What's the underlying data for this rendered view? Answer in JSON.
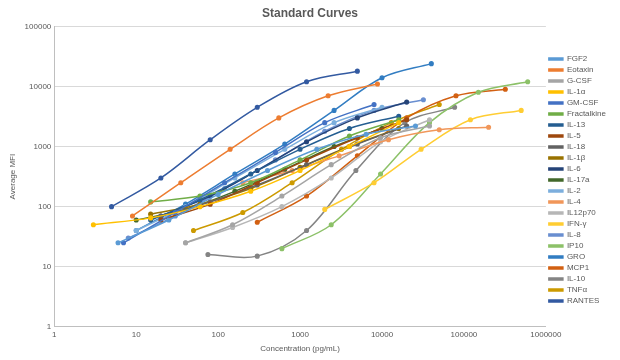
{
  "chart_data": {
    "type": "line",
    "title": "Standard Curves",
    "x_label": "Concentration (pg/mL)",
    "y_label": "Average MFI",
    "log": true,
    "grid": "y",
    "legend": "right",
    "marker": "circle",
    "xlim": [
      1,
      1000000
    ],
    "xticks": [
      1,
      10,
      100,
      1000,
      10000,
      100000,
      1000000
    ],
    "ylim": [
      1,
      100000
    ],
    "yticks": [
      1,
      10,
      100,
      1000,
      10000,
      100000
    ],
    "series": [
      {
        "name": "FGF2",
        "color": "#5B9BD5",
        "x": [
          6,
          25,
          100,
          400,
          1600,
          6400,
          25600
        ],
        "values": [
          25,
          60,
          160,
          400,
          900,
          1600,
          2200
        ]
      },
      {
        "name": "Eotaxin",
        "color": "#ED7D31",
        "x": [
          9,
          35,
          140,
          550,
          2200,
          8800
        ],
        "values": [
          70,
          250,
          900,
          3000,
          7000,
          11000
        ]
      },
      {
        "name": "G-CSF",
        "color": "#A5A5A5",
        "x": [
          40,
          150,
          600,
          2400,
          9600,
          38000
        ],
        "values": [
          25,
          50,
          150,
          500,
          1400,
          2200
        ]
      },
      {
        "name": "IL-1α",
        "color": "#FFC000",
        "x": [
          3,
          15,
          60,
          250,
          1000,
          4000,
          16000
        ],
        "values": [
          50,
          65,
          100,
          180,
          400,
          1000,
          2500
        ]
      },
      {
        "name": "GM-CSF",
        "color": "#4472C4",
        "x": [
          7,
          30,
          120,
          500,
          2000,
          8000
        ],
        "values": [
          25,
          80,
          250,
          800,
          2500,
          5000
        ]
      },
      {
        "name": "Fractalkine",
        "color": "#70AD47",
        "x": [
          15,
          60,
          250,
          1000,
          4000,
          16000
        ],
        "values": [
          120,
          150,
          250,
          600,
          1500,
          2800
        ]
      },
      {
        "name": "IL-13",
        "color": "#255E91",
        "x": [
          15,
          60,
          250,
          1000,
          4000,
          16000
        ],
        "values": [
          60,
          130,
          350,
          900,
          2000,
          3200
        ]
      },
      {
        "name": "IL-5",
        "color": "#9E480E",
        "x": [
          20,
          80,
          300,
          1200,
          5000,
          20000
        ],
        "values": [
          60,
          110,
          250,
          600,
          1400,
          2800
        ]
      },
      {
        "name": "IL-18",
        "color": "#636363",
        "x": [
          20,
          80,
          300,
          1200,
          5000,
          20000
        ],
        "values": [
          70,
          120,
          230,
          500,
          1100,
          2200
        ]
      },
      {
        "name": "IL-1β",
        "color": "#997300",
        "x": [
          15,
          60,
          250,
          1000,
          4000,
          16000
        ],
        "values": [
          75,
          110,
          200,
          450,
          1000,
          2000
        ]
      },
      {
        "name": "IL-6",
        "color": "#264478",
        "x": [
          20,
          80,
          300,
          1200,
          5000,
          20000
        ],
        "values": [
          70,
          150,
          400,
          1200,
          3000,
          5500
        ]
      },
      {
        "name": "IL-17a",
        "color": "#43682B",
        "x": [
          10,
          40,
          160,
          650,
          2600,
          10000
        ],
        "values": [
          60,
          90,
          180,
          420,
          1000,
          2000
        ]
      },
      {
        "name": "IL-2",
        "color": "#7CAFDD",
        "x": [
          10,
          40,
          160,
          650,
          2600,
          10000
        ],
        "values": [
          40,
          100,
          300,
          900,
          2500,
          4500
        ]
      },
      {
        "name": "IL-4",
        "color": "#F1975A",
        "x": [
          200,
          800,
          3000,
          12000,
          50000,
          200000
        ],
        "values": [
          250,
          400,
          700,
          1300,
          1900,
          2100
        ]
      },
      {
        "name": "IL12p70",
        "color": "#B7B7B7",
        "x": [
          40,
          150,
          600,
          2400,
          9600,
          38000
        ],
        "values": [
          25,
          45,
          100,
          300,
          1200,
          2800
        ]
      },
      {
        "name": "IFN-γ",
        "color": "#FFCD33",
        "x": [
          2000,
          8000,
          30000,
          120000,
          500000
        ],
        "values": [
          90,
          250,
          900,
          2800,
          4000
        ]
      },
      {
        "name": "IL-8",
        "color": "#698ED0",
        "x": [
          8,
          30,
          120,
          500,
          2000,
          8000,
          32000
        ],
        "values": [
          30,
          70,
          200,
          600,
          1800,
          4000,
          6000
        ]
      },
      {
        "name": "IP10",
        "color": "#8CC168",
        "x": [
          600,
          2400,
          9600,
          38000,
          150000,
          600000
        ],
        "values": [
          20,
          50,
          350,
          2500,
          8000,
          12000
        ]
      },
      {
        "name": "GRO",
        "color": "#327DC2",
        "x": [
          10,
          40,
          160,
          650,
          2600,
          10000,
          40000
        ],
        "values": [
          40,
          110,
          350,
          1100,
          4000,
          14000,
          24000
        ]
      },
      {
        "name": "MCP1",
        "color": "#D26012",
        "x": [
          300,
          1200,
          5000,
          20000,
          80000,
          320000
        ],
        "values": [
          55,
          150,
          700,
          3000,
          7000,
          9000
        ]
      },
      {
        "name": "IL-10",
        "color": "#848484",
        "x": [
          75,
          300,
          1200,
          4800,
          19000,
          77000
        ],
        "values": [
          16,
          15,
          40,
          400,
          2500,
          4500
        ]
      },
      {
        "name": "TNFα",
        "color": "#CC9A00",
        "x": [
          50,
          200,
          800,
          3200,
          13000,
          50000
        ],
        "values": [
          40,
          80,
          250,
          900,
          2500,
          5000
        ]
      },
      {
        "name": "RANTES",
        "color": "#335AA1",
        "x": [
          5,
          20,
          80,
          300,
          1200,
          5000
        ],
        "values": [
          100,
          300,
          1300,
          4500,
          12000,
          18000
        ]
      }
    ]
  }
}
